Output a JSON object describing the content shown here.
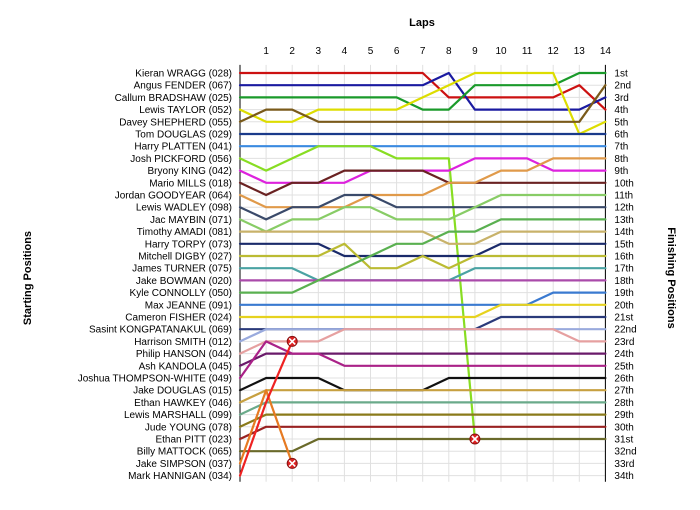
{
  "chart_data": {
    "type": "line",
    "title": "Laps",
    "ylabel_left": "Starting Positions",
    "ylabel_right": "Finishing Positions",
    "laps": [
      1,
      2,
      3,
      4,
      5,
      6,
      7,
      8,
      9,
      10,
      11,
      12,
      13,
      14
    ],
    "start_labels": [
      "Kieran WRAGG (028)",
      "Angus FENDER (067)",
      "Callum BRADSHAW (025)",
      "Lewis TAYLOR (052)",
      "Davey SHEPHERD (055)",
      "Tom DOUGLAS (029)",
      "Harry PLATTEN (041)",
      "Josh PICKFORD (056)",
      "Bryony KING (042)",
      "Mario MILLS (018)",
      "Jordan GOODYEAR (064)",
      "Lewis WADLEY (098)",
      "Jac MAYBIN (071)",
      "Timothy AMADI (081)",
      "Harry TORPY (073)",
      "Mitchell DIGBY (027)",
      "James TURNER (075)",
      "Jake BOWMAN (020)",
      "Kyle CONNOLLY (050)",
      "Max JEANNE (091)",
      "Cameron FISHER (024)",
      "Sasint KONGPATANAKUL (069)",
      "Harrison SMITH (012)",
      "Philip HANSON (044)",
      "Ash KANDOLA (045)",
      "Joshua THOMPSON-WHITE (049)",
      "Jake DOUGLAS (015)",
      "Ethan HAWKEY (046)",
      "Lewis MARSHALL (099)",
      "Jude YOUNG (078)",
      "Ethan PITT (023)",
      "Billy MATTOCK (065)",
      "Jake SIMPSON (037)",
      "Mark HANNIGAN (034)"
    ],
    "finish_labels": [
      "1st",
      "2nd",
      "3rd",
      "4th",
      "5th",
      "6th",
      "7th",
      "8th",
      "9th",
      "10th",
      "11th",
      "12th",
      "13th",
      "14th",
      "15th",
      "16th",
      "17th",
      "18th",
      "19th",
      "20th",
      "21st",
      "22nd",
      "23rd",
      "24th",
      "25th",
      "26th",
      "27th",
      "28th",
      "29th",
      "30th",
      "31st",
      "32nd",
      "33rd",
      "34th"
    ],
    "series": [
      {
        "start": 1,
        "positions": [
          1,
          1,
          1,
          1,
          1,
          1,
          1,
          3,
          3,
          3,
          3,
          3,
          2,
          4
        ],
        "color": "#cc1111"
      },
      {
        "start": 2,
        "positions": [
          2,
          2,
          2,
          2,
          2,
          2,
          2,
          1,
          4,
          4,
          4,
          4,
          4,
          3
        ],
        "color": "#1a1aa0"
      },
      {
        "start": 3,
        "positions": [
          3,
          3,
          3,
          3,
          3,
          3,
          4,
          4,
          2,
          2,
          2,
          2,
          1,
          1
        ],
        "color": "#1a9a2a"
      },
      {
        "start": 4,
        "positions": [
          5,
          5,
          4,
          4,
          4,
          4,
          3,
          2,
          1,
          1,
          1,
          1,
          6,
          5
        ],
        "color": "#dddd00"
      },
      {
        "start": 5,
        "positions": [
          4,
          4,
          5,
          5,
          5,
          5,
          5,
          5,
          5,
          5,
          5,
          5,
          5,
          2
        ],
        "color": "#7a5a1a"
      },
      {
        "start": 6,
        "positions": [
          6,
          6,
          6,
          6,
          6,
          6,
          6,
          6,
          6,
          6,
          6,
          6,
          6,
          6
        ],
        "color": "#1a3a8a"
      },
      {
        "start": 7,
        "positions": [
          7,
          7,
          7,
          7,
          7,
          7,
          7,
          7,
          7,
          7,
          7,
          7,
          7,
          7
        ],
        "color": "#3a8ae0"
      },
      {
        "start": 8,
        "positions": [
          9,
          8,
          7,
          7,
          7,
          8,
          8,
          8,
          31,
          null,
          null,
          null,
          null,
          null
        ],
        "color": "#88dd22",
        "retired": 9
      },
      {
        "start": 9,
        "positions": [
          10,
          10,
          10,
          10,
          9,
          9,
          9,
          9,
          8,
          8,
          8,
          9,
          9,
          9
        ],
        "color": "#dd22dd"
      },
      {
        "start": 10,
        "positions": [
          11,
          10,
          10,
          9,
          9,
          9,
          9,
          10,
          10,
          10,
          10,
          10,
          10,
          10
        ],
        "color": "#6a2222"
      },
      {
        "start": 11,
        "positions": [
          12,
          12,
          12,
          12,
          11,
          11,
          11,
          10,
          10,
          9,
          9,
          8,
          8,
          8
        ],
        "color": "#e09a4a"
      },
      {
        "start": 12,
        "positions": [
          13,
          12,
          12,
          11,
          11,
          12,
          12,
          12,
          12,
          12,
          12,
          12,
          12,
          12
        ],
        "color": "#3a4a6a"
      },
      {
        "start": 13,
        "positions": [
          14,
          13,
          13,
          12,
          12,
          13,
          13,
          13,
          12,
          11,
          11,
          11,
          11,
          11
        ],
        "color": "#88cc66"
      },
      {
        "start": 14,
        "positions": [
          14,
          14,
          14,
          14,
          14,
          14,
          14,
          15,
          15,
          14,
          14,
          14,
          14,
          14
        ],
        "color": "#c8b26a"
      },
      {
        "start": 15,
        "positions": [
          15,
          15,
          15,
          16,
          16,
          16,
          16,
          16,
          16,
          15,
          15,
          15,
          15,
          15
        ],
        "color": "#1a2a6a"
      },
      {
        "start": 16,
        "positions": [
          16,
          16,
          16,
          15,
          17,
          17,
          16,
          17,
          16,
          16,
          16,
          16,
          16,
          16
        ],
        "color": "#bbbb33"
      },
      {
        "start": 17,
        "positions": [
          17,
          17,
          18,
          18,
          18,
          18,
          18,
          18,
          17,
          17,
          17,
          17,
          17,
          17
        ],
        "color": "#4aa3a3"
      },
      {
        "start": 18,
        "positions": [
          18,
          18,
          18,
          18,
          18,
          18,
          18,
          18,
          18,
          18,
          18,
          18,
          18,
          18
        ],
        "color": "#aa4aaa"
      },
      {
        "start": 19,
        "positions": [
          19,
          19,
          18,
          17,
          16,
          15,
          15,
          14,
          14,
          13,
          13,
          13,
          13,
          13
        ],
        "color": "#5ab050"
      },
      {
        "start": 20,
        "positions": [
          20,
          20,
          20,
          20,
          20,
          20,
          20,
          20,
          20,
          20,
          20,
          19,
          19,
          19
        ],
        "color": "#3a7ad0"
      },
      {
        "start": 21,
        "positions": [
          21,
          21,
          21,
          21,
          21,
          21,
          21,
          21,
          21,
          20,
          20,
          20,
          20,
          20
        ],
        "color": "#e6d21e"
      },
      {
        "start": 22,
        "positions": [
          22,
          22,
          22,
          22,
          22,
          22,
          22,
          22,
          22,
          21,
          21,
          21,
          21,
          21
        ],
        "color": "#2a3a7a"
      },
      {
        "start": 23,
        "positions": [
          22,
          22,
          22,
          22,
          22,
          22,
          22,
          22,
          22,
          22,
          22,
          22,
          22,
          22
        ],
        "color": "#99aadd"
      },
      {
        "start": 24,
        "positions": [
          23,
          23,
          23,
          22,
          22,
          22,
          22,
          22,
          22,
          22,
          22,
          22,
          23,
          23
        ],
        "color": "#e6a0a0"
      },
      {
        "start": 25,
        "positions": [
          24,
          24,
          24,
          24,
          24,
          24,
          24,
          24,
          24,
          24,
          24,
          24,
          24,
          24
        ],
        "color": "#6a1a6a"
      },
      {
        "start": 26,
        "positions": [
          23,
          24,
          24,
          25,
          25,
          25,
          25,
          25,
          25,
          25,
          25,
          25,
          25,
          25
        ],
        "color": "#aa2288"
      },
      {
        "start": 27,
        "positions": [
          26,
          26,
          26,
          27,
          27,
          27,
          27,
          26,
          26,
          26,
          26,
          26,
          26,
          26
        ],
        "color": "#111111"
      },
      {
        "start": 28,
        "positions": [
          27,
          27,
          27,
          27,
          27,
          27,
          27,
          27,
          27,
          27,
          27,
          27,
          27,
          27
        ],
        "color": "#c7a040"
      },
      {
        "start": 29,
        "positions": [
          28,
          28,
          28,
          28,
          28,
          28,
          28,
          28,
          28,
          28,
          28,
          28,
          28,
          28
        ],
        "color": "#6aaa8a"
      },
      {
        "start": 30,
        "positions": [
          29,
          29,
          29,
          29,
          29,
          29,
          29,
          29,
          29,
          29,
          29,
          29,
          29,
          29
        ],
        "color": "#8a7a1a"
      },
      {
        "start": 31,
        "positions": [
          30,
          30,
          30,
          30,
          30,
          30,
          30,
          30,
          30,
          30,
          30,
          30,
          30,
          30
        ],
        "color": "#992222"
      },
      {
        "start": 32,
        "positions": [
          32,
          32,
          31,
          31,
          31,
          31,
          31,
          31,
          31,
          31,
          31,
          31,
          31,
          31
        ],
        "color": "#6a6a2a"
      },
      {
        "start": 33,
        "positions": [
          27,
          33,
          null,
          null,
          null,
          null,
          null,
          null,
          null,
          null,
          null,
          null,
          null,
          null
        ],
        "color": "#e67a22",
        "retired": 2
      },
      {
        "start": 34,
        "positions": [
          28,
          23,
          null,
          null,
          null,
          null,
          null,
          null,
          null,
          null,
          null,
          null,
          null,
          null
        ],
        "color": "#ee2222",
        "retired": 2
      }
    ],
    "grid": true,
    "legend": "none"
  }
}
